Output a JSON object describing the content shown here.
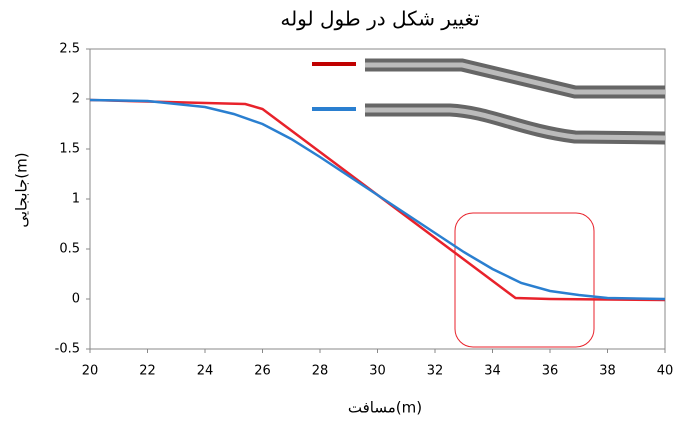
{
  "chart_data": {
    "type": "line",
    "title": "تغییر شکل در طول لوله",
    "x_label": "مسافت(m)",
    "y_label": "جابجایی(m)",
    "xlim": [
      20,
      40
    ],
    "xticks": [
      20,
      22,
      24,
      26,
      28,
      30,
      32,
      34,
      36,
      38,
      40
    ],
    "ylim": [
      -0.5,
      2.5
    ],
    "yticks": [
      -0.5,
      0,
      0.5,
      1,
      1.5,
      2,
      2.5
    ],
    "grid": false,
    "series": [
      {
        "color": "#e8222b",
        "x": [
          20,
          25.4,
          26,
          34.8,
          36,
          40
        ],
        "values": [
          1.99,
          1.95,
          1.9,
          0.01,
          0,
          -0.01
        ]
      },
      {
        "color": "#2a7fd0",
        "x": [
          20,
          22,
          24,
          25,
          26,
          27,
          28,
          29,
          30,
          31,
          32,
          33,
          34,
          35,
          36,
          37,
          38,
          40
        ],
        "values": [
          1.99,
          1.98,
          1.92,
          1.85,
          1.75,
          1.6,
          1.42,
          1.23,
          1.04,
          0.85,
          0.66,
          0.47,
          0.3,
          0.16,
          0.08,
          0.04,
          0.01,
          0
        ]
      }
    ]
  }
}
